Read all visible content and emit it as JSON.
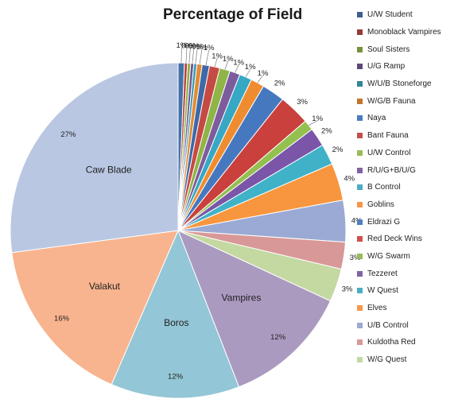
{
  "chart_data": {
    "type": "pie",
    "title": "Percentage of Field",
    "legend_position": "right",
    "slices": [
      {
        "name": "U/W Student",
        "value": 0.6,
        "label": "1%",
        "color": "#4472a8"
      },
      {
        "name": "Monoblack Vampires",
        "value": 0.3,
        "label": "0%",
        "color": "#b8453f"
      },
      {
        "name": "Soul Sisters",
        "value": 0.3,
        "label": "0%",
        "color": "#8db04a"
      },
      {
        "name": "U/G Ramp",
        "value": 0.3,
        "label": "0%",
        "color": "#6e5590"
      },
      {
        "name": "W/U/B Stoneforge",
        "value": 0.3,
        "label": "0%",
        "color": "#3d9db6"
      },
      {
        "name": "W/G/B Fauna",
        "value": 0.5,
        "label": "0%",
        "color": "#e28a35"
      },
      {
        "name": "Naya",
        "value": 0.7,
        "label": "1%",
        "color": "#3d69a8"
      },
      {
        "name": "Bant Fauna",
        "value": 1.0,
        "label": "1%",
        "color": "#c64a44"
      },
      {
        "name": "U/W Control",
        "value": 1.0,
        "label": "1%",
        "color": "#8fb448"
      },
      {
        "name": "R/U/G+B/U/G",
        "value": 1.0,
        "label": "1%",
        "color": "#7d5c9e"
      },
      {
        "name": "B Control",
        "value": 1.2,
        "label": "1%",
        "color": "#37a8c4"
      },
      {
        "name": "Goblins",
        "value": 1.3,
        "label": "1%",
        "color": "#f08c30"
      },
      {
        "name": "Eldrazi G",
        "value": 2.2,
        "label": "2%",
        "color": "#4678bf"
      },
      {
        "name": "Red Deck Wins",
        "value": 3.0,
        "label": "3%",
        "color": "#c9403d"
      },
      {
        "name": "W/G Swarm",
        "value": 1.0,
        "label": "1%",
        "color": "#94c050"
      },
      {
        "name": "Tezzeret",
        "value": 1.8,
        "label": "2%",
        "color": "#7a55a8"
      },
      {
        "name": "W Quest",
        "value": 2.0,
        "label": "2%",
        "color": "#3fb2c8"
      },
      {
        "name": "Elves",
        "value": 3.6,
        "label": "4%",
        "color": "#f7963e"
      },
      {
        "name": "U/B Control",
        "value": 4.0,
        "label": "4%",
        "color": "#9aaad4"
      },
      {
        "name": "Kuldotha Red",
        "value": 2.6,
        "label": "3%",
        "color": "#d89897"
      },
      {
        "name": "W/G Quest",
        "value": 3.2,
        "label": "3%",
        "color": "#c4d8a2"
      },
      {
        "name": "Vampires",
        "value": 12.2,
        "label": "12%",
        "color": "#ab9ac0"
      },
      {
        "name": "Boros",
        "value": 12.4,
        "label": "12%",
        "color": "#93c6d6"
      },
      {
        "name": "Valakut",
        "value": 16.4,
        "label": "16%",
        "color": "#f8b48e"
      },
      {
        "name": "Caw Blade",
        "value": 27.1,
        "label": "27%",
        "color": "#b9c7e2"
      }
    ],
    "inside_labels": [
      {
        "slice": "Vampires",
        "text": "Vampires"
      },
      {
        "slice": "Boros",
        "text": "Boros"
      },
      {
        "slice": "Valakut",
        "text": "Valakut"
      },
      {
        "slice": "Caw Blade",
        "text": "Caw Blade"
      }
    ],
    "legend": [
      {
        "name": "U/W Student",
        "color": "#3d5f8c"
      },
      {
        "name": "Monoblack Vampires",
        "color": "#963a36"
      },
      {
        "name": "Soul Sisters",
        "color": "#76933e"
      },
      {
        "name": "U/G Ramp",
        "color": "#5c477a"
      },
      {
        "name": "W/U/B Stoneforge",
        "color": "#34849a"
      },
      {
        "name": "W/G/B Fauna",
        "color": "#c2752d"
      },
      {
        "name": "Naya",
        "color": "#4a7cc0"
      },
      {
        "name": "Bant Fauna",
        "color": "#c0504d"
      },
      {
        "name": "U/W Control",
        "color": "#9bbb59"
      },
      {
        "name": "R/U/G+B/U/G",
        "color": "#8064a2"
      },
      {
        "name": "B Control",
        "color": "#4bacc6"
      },
      {
        "name": "Goblins",
        "color": "#f79646"
      },
      {
        "name": "Eldrazi G",
        "color": "#4f81bd"
      },
      {
        "name": "Red Deck Wins",
        "color": "#d0504d"
      },
      {
        "name": "W/G Swarm",
        "color": "#9bbb59"
      },
      {
        "name": "Tezzeret",
        "color": "#8064a2"
      },
      {
        "name": "W Quest",
        "color": "#4bacc6"
      },
      {
        "name": "Elves",
        "color": "#f79646"
      },
      {
        "name": "U/B Control",
        "color": "#9aaad4"
      },
      {
        "name": "Kuldotha Red",
        "color": "#d89897"
      },
      {
        "name": "W/G Quest",
        "color": "#c4d8a2"
      }
    ]
  }
}
